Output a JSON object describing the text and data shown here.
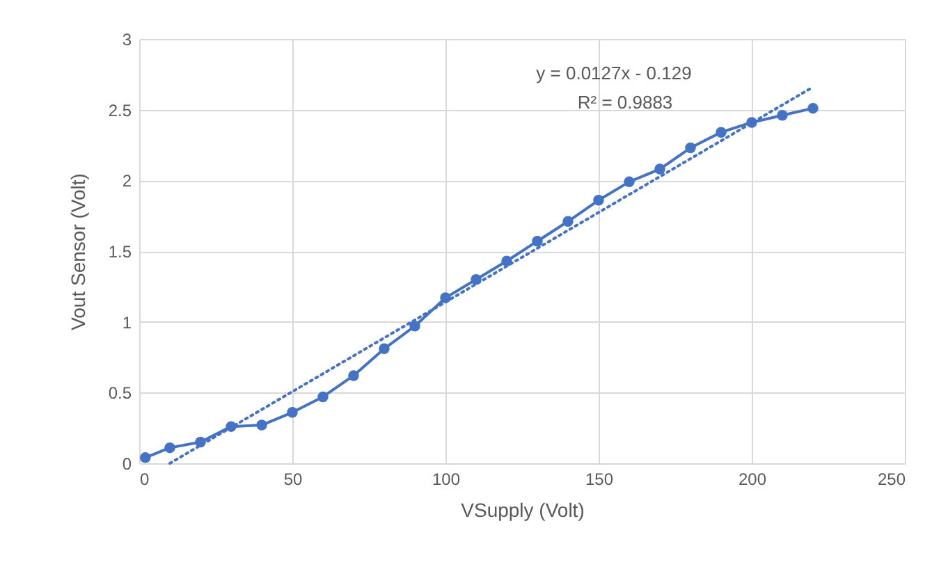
{
  "chart_data": {
    "type": "line",
    "xlabel": "VSupply (Volt)",
    "ylabel": "Vout Sensor (Volt)",
    "x": [
      2,
      10,
      20,
      30,
      40,
      50,
      60,
      70,
      80,
      90,
      100,
      110,
      120,
      130,
      140,
      150,
      160,
      170,
      180,
      190,
      200,
      210,
      220
    ],
    "series": [
      {
        "color": "#4472c4",
        "marker": "circle",
        "line_style": "solid",
        "values": [
          0.04,
          0.11,
          0.15,
          0.26,
          0.27,
          0.36,
          0.47,
          0.62,
          0.81,
          0.97,
          1.17,
          1.3,
          1.43,
          1.57,
          1.71,
          1.86,
          1.99,
          2.08,
          2.23,
          2.34,
          2.41,
          2.46,
          2.51
        ]
      },
      {
        "type": "line",
        "color": "#4472c4",
        "marker": "none",
        "line_style": "dotted",
        "x": [
          10,
          220
        ],
        "values": [
          0.0,
          2.66
        ]
      }
    ],
    "annotations": [
      "y = 0.0127x - 0.129",
      "R² = 0.9883"
    ],
    "xlim": [
      0,
      250
    ],
    "xticks": [
      0,
      50,
      100,
      150,
      200,
      250
    ],
    "ylim": [
      0,
      3
    ],
    "yticks": [
      0,
      0.5,
      1,
      1.5,
      2,
      2.5,
      3
    ],
    "grid": true
  }
}
